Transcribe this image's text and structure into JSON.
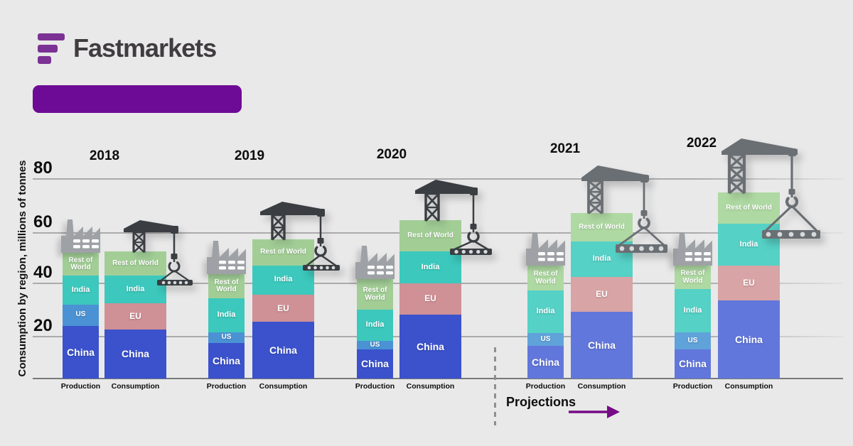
{
  "page": {
    "background": "#E9E9E9"
  },
  "brand": {
    "logo_text": "Fastmarkets",
    "logo_mark_color": "#7C3194",
    "logo_text_color": "#403C40"
  },
  "banner": {
    "text": "",
    "color": "#6E0B96"
  },
  "chart_data": {
    "type": "bar",
    "variant": "grouped-stacked",
    "title": "",
    "ylabel": "Consumption by region, millions of tonnes",
    "unit": "millions of tonnes",
    "ylim": [
      0,
      80
    ],
    "yticks": [
      20,
      40,
      60,
      80
    ],
    "grid": true,
    "legend_position": "inside-segments",
    "bar_types": [
      "Production",
      "Consumption"
    ],
    "production_stack_order": [
      "China",
      "US",
      "India",
      "Rest of World"
    ],
    "consumption_stack_order": [
      "China",
      "EU",
      "India",
      "Rest of World"
    ],
    "groups": [
      {
        "year": "2018",
        "projection": false,
        "production": {
          "China": 21,
          "US": 8.5,
          "India": 11.5,
          "Rest of World": 9
        },
        "consumption": {
          "China": 19.5,
          "EU": 10.5,
          "India": 11,
          "Rest of World": 9.5
        }
      },
      {
        "year": "2019",
        "projection": false,
        "production": {
          "China": 14,
          "US": 4.5,
          "India": 13.5,
          "Rest of World": 9.5
        },
        "consumption": {
          "China": 22.5,
          "EU": 11,
          "India": 11.5,
          "Rest of World": 10.5
        }
      },
      {
        "year": "2020",
        "projection": false,
        "production": {
          "China": 11.5,
          "US": 3.5,
          "India": 12.5,
          "Rest of World": 12
        },
        "consumption": {
          "China": 25.5,
          "EU": 12.5,
          "India": 12.5,
          "Rest of World": 12.5
        }
      },
      {
        "year": "2021",
        "projection": true,
        "production": {
          "China": 13,
          "US": 5,
          "India": 17,
          "Rest of World": 10
        },
        "consumption": {
          "China": 26.5,
          "EU": 14,
          "India": 14,
          "Rest of World": 11.5
        }
      },
      {
        "year": "2022",
        "projection": true,
        "production": {
          "China": 11.5,
          "US": 7,
          "India": 17,
          "Rest of World": 9.5
        },
        "consumption": {
          "China": 31,
          "EU": 14,
          "India": 16.5,
          "Rest of World": 12.5
        }
      }
    ]
  },
  "annotations": {
    "projections_label": "Projections",
    "projection_years": [
      "2021",
      "2022"
    ],
    "arrow_color": "#750C86",
    "divider_style": "dashed"
  },
  "colors": {
    "actual": {
      "China": "#3B52CC",
      "US": "#4A92D4",
      "India": "#3CC8BC",
      "EU": "#CF9096",
      "Rest of World": "#A2CE96"
    },
    "projected": {
      "China": "#6277DB",
      "US": "#60A2DA",
      "India": "#55D1C6",
      "EU": "#D8A4A6",
      "Rest of World": "#AFD9A2"
    },
    "gridline": "#ABABAB",
    "baseline": "#77797B",
    "factory_icon": "#9EA2A6",
    "crane_actual": "#3A3E42",
    "crane_projected": "#6A6F74",
    "segment_label": "#FFFFFF",
    "axis_text": "#111111"
  }
}
